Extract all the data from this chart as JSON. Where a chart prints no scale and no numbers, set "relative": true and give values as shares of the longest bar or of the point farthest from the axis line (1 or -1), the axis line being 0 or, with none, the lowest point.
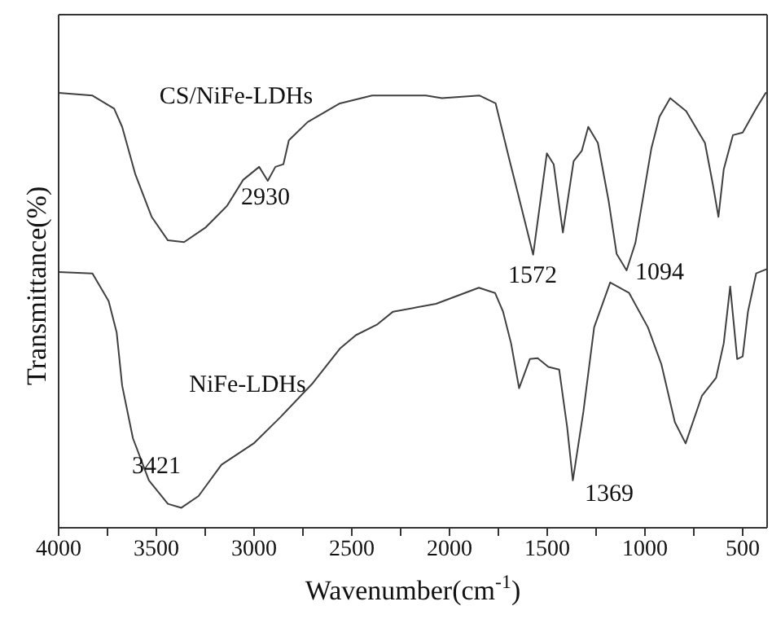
{
  "chart_data": {
    "type": "line",
    "relative": true,
    "xlabel": "Wavenumber(cm$^{-1}$)",
    "ylabel": "Transmittance(%)",
    "xlim": [
      4000,
      375
    ],
    "xticks": [
      4000,
      {
        "value": 3750,
        "label": null
      },
      3500,
      {
        "value": 3250,
        "label": null
      },
      3000,
      {
        "value": 2750,
        "label": null
      },
      2500,
      {
        "value": 2250,
        "label": null
      },
      2000,
      {
        "value": 1750,
        "label": null
      },
      1500,
      {
        "value": 1250,
        "label": null
      },
      1000,
      {
        "value": 750,
        "label": null
      },
      500
    ],
    "grid": false,
    "legend": false,
    "marker": "none",
    "line_style": "solid",
    "series": [
      {
        "color": "#404040",
        "x": [
          4000,
          3827,
          3716,
          3675,
          3607,
          3524,
          3441,
          3358,
          3247,
          3139,
          3056,
          2974,
          2930,
          2891,
          2850,
          2822,
          2726,
          2561,
          2396,
          2121,
          2039,
          1846,
          1764,
          1695,
          1654,
          1572,
          1502,
          1467,
          1420,
          1365,
          1323,
          1290,
          1241,
          1186,
          1145,
          1094,
          1049,
          967,
          926,
          871,
          789,
          693,
          652,
          624,
          597,
          550,
          500,
          431,
          382
        ],
        "values": [
          1.0,
          0.994,
          0.964,
          0.922,
          0.812,
          0.715,
          0.661,
          0.657,
          0.691,
          0.74,
          0.8,
          0.83,
          0.798,
          0.83,
          0.836,
          0.891,
          0.933,
          0.976,
          0.994,
          0.994,
          0.988,
          0.994,
          0.976,
          0.849,
          0.776,
          0.628,
          0.861,
          0.836,
          0.679,
          0.843,
          0.867,
          0.922,
          0.885,
          0.752,
          0.63,
          0.592,
          0.655,
          0.873,
          0.945,
          0.988,
          0.958,
          0.885,
          0.788,
          0.715,
          0.824,
          0.903,
          0.909,
          0.964,
          1.0
        ]
      },
      {
        "color": "#404040",
        "x": [
          4000,
          3827,
          3744,
          3703,
          3675,
          3620,
          3538,
          3441,
          3372,
          3284,
          3167,
          3002,
          2864,
          2699,
          2561,
          2479,
          2372,
          2289,
          2069,
          1850,
          1767,
          1726,
          1685,
          1644,
          1589,
          1549,
          1494,
          1439,
          1398,
          1369,
          1315,
          1260,
          1178,
          1081,
          985,
          916,
          847,
          792,
          709,
          636,
          597,
          564,
          528,
          500,
          473,
          431,
          382
        ],
        "values": [
          0.588,
          0.585,
          0.521,
          0.449,
          0.327,
          0.206,
          0.109,
          0.055,
          0.046,
          0.073,
          0.145,
          0.194,
          0.255,
          0.333,
          0.412,
          0.443,
          0.467,
          0.497,
          0.515,
          0.552,
          0.54,
          0.497,
          0.424,
          0.321,
          0.388,
          0.39,
          0.37,
          0.364,
          0.231,
          0.109,
          0.267,
          0.461,
          0.564,
          0.54,
          0.461,
          0.376,
          0.243,
          0.194,
          0.303,
          0.345,
          0.424,
          0.555,
          0.388,
          0.394,
          0.497,
          0.585,
          0.594
        ]
      }
    ],
    "annotations": [
      "CS/NiFe-LDHs",
      "2930",
      "1572",
      "1094",
      "NiFe-LDHs",
      "3421",
      "1369"
    ]
  }
}
